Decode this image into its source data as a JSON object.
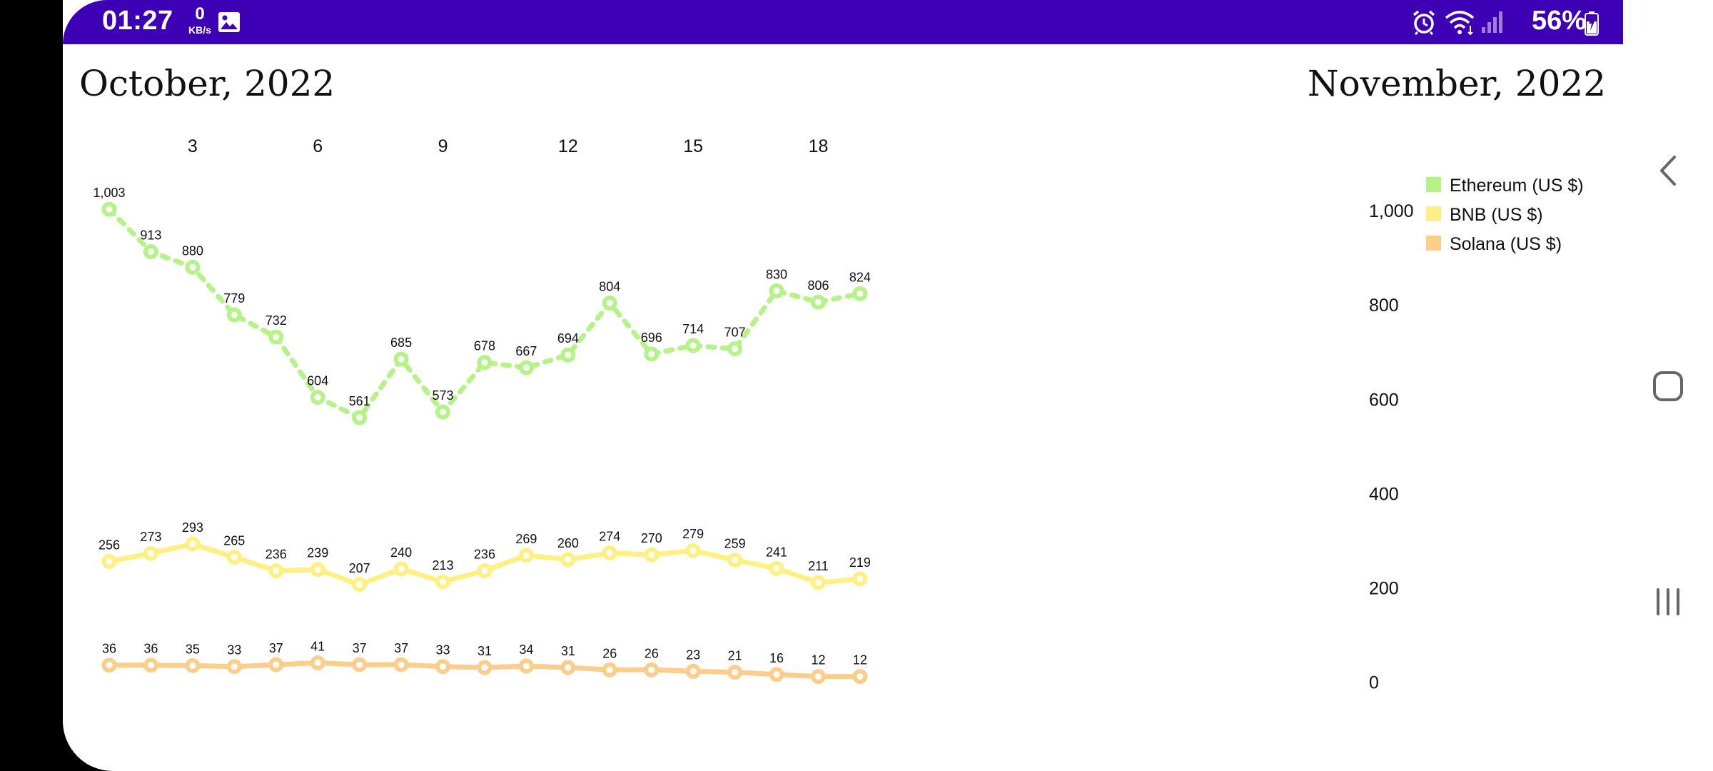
{
  "status_bar": {
    "time": "01:27",
    "data_speed_value": "0",
    "data_speed_unit": "KB/s",
    "battery": "56%",
    "background": "#3d00b5",
    "icons": [
      "image-icon",
      "alarm-icon",
      "wifi-icon",
      "signal-icon",
      "battery-charging-icon"
    ]
  },
  "header": {
    "left_month": "October, 2022",
    "right_month": "November, 2022"
  },
  "navigation": {
    "buttons": [
      "back-icon",
      "home-icon",
      "recents-icon"
    ]
  },
  "chart_data": {
    "type": "line",
    "x": [
      1,
      2,
      3,
      4,
      5,
      6,
      7,
      8,
      9,
      10,
      11,
      12,
      13,
      14,
      15,
      16,
      17,
      18,
      19
    ],
    "x_tick_labels": [
      3,
      6,
      9,
      12,
      15,
      18
    ],
    "x_axis_position": "top",
    "y_axis_position": "right",
    "ylim": [
      0,
      1100
    ],
    "y_ticks": [
      {
        "value": 0,
        "label": "0"
      },
      {
        "value": 200,
        "label": "200"
      },
      {
        "value": 400,
        "label": "400"
      },
      {
        "value": 600,
        "label": "600"
      },
      {
        "value": 800,
        "label": "800"
      },
      {
        "value": 1000,
        "label": "1,000"
      }
    ],
    "grid": false,
    "legend_position": "top-right",
    "series": [
      {
        "name": "Ethereum (US $)",
        "color": "#b5f389",
        "style": "dashed",
        "values": [
          1003,
          913,
          880,
          779,
          732,
          604,
          561,
          685,
          573,
          678,
          667,
          694,
          804,
          696,
          714,
          707,
          830,
          806,
          824
        ],
        "labels": [
          "1,003",
          "913",
          "880",
          "779",
          "732",
          "604",
          "561",
          "685",
          "573",
          "678",
          "667",
          "694",
          "804",
          "696",
          "714",
          "707",
          "830",
          "806",
          "824"
        ]
      },
      {
        "name": "BNB (US $)",
        "color": "#fff084",
        "style": "solid",
        "values": [
          256,
          273,
          293,
          265,
          236,
          239,
          207,
          240,
          213,
          236,
          269,
          260,
          274,
          270,
          279,
          259,
          241,
          211,
          219
        ],
        "labels": [
          "256",
          "273",
          "293",
          "265",
          "236",
          "239",
          "207",
          "240",
          "213",
          "236",
          "269",
          "260",
          "274",
          "270",
          "279",
          "259",
          "241",
          "211",
          "219"
        ]
      },
      {
        "name": "Solana (US $)",
        "color": "#fcce8b",
        "style": "solid",
        "values": [
          36,
          36,
          35,
          33,
          37,
          41,
          37,
          37,
          33,
          31,
          34,
          31,
          26,
          26,
          23,
          21,
          16,
          12,
          12
        ],
        "labels": [
          "36",
          "36",
          "35",
          "33",
          "37",
          "41",
          "37",
          "37",
          "33",
          "31",
          "34",
          "31",
          "26",
          "26",
          "23",
          "21",
          "16",
          "12",
          "12"
        ]
      }
    ]
  }
}
